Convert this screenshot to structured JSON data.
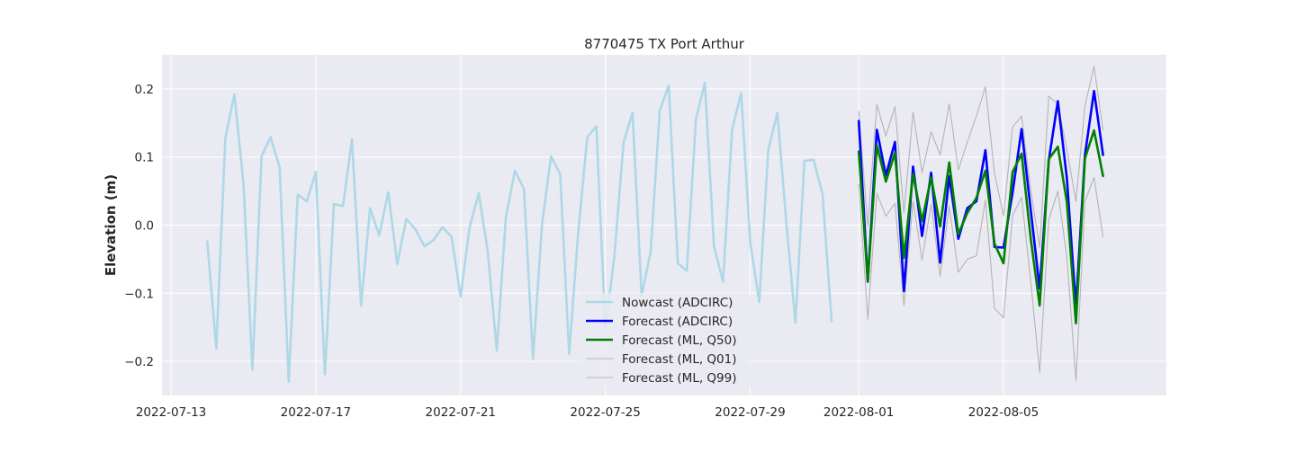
{
  "chart_data": {
    "type": "line",
    "title": "8770475 TX Port Arthur",
    "xlabel": "",
    "ylabel": "Elevation (m)",
    "x_ticks": [
      "2022-07-13",
      "2022-07-17",
      "2022-07-21",
      "2022-07-25",
      "2022-07-29",
      "2022-08-01",
      "2022-08-05"
    ],
    "y_ticks": [
      "−0.2",
      "−0.1",
      "0.0",
      "0.1",
      "0.2"
    ],
    "ylim": [
      -0.25,
      0.25
    ],
    "xlim": [
      "2022-07-12 18:00",
      "2022-08-09 12:00"
    ],
    "grid": true,
    "legend_position": "lower-center",
    "series": [
      {
        "name": "Nowcast (ADCIRC)",
        "color": "#add8e6",
        "x": [
          "2022-07-14 00:00",
          "2022-07-14 06:00",
          "2022-07-14 12:00",
          "2022-07-14 18:00",
          "2022-07-15 00:00",
          "2022-07-15 06:00",
          "2022-07-15 12:00",
          "2022-07-15 18:00",
          "2022-07-16 00:00",
          "2022-07-16 06:00",
          "2022-07-16 12:00",
          "2022-07-16 18:00",
          "2022-07-17 00:00",
          "2022-07-17 06:00",
          "2022-07-17 12:00",
          "2022-07-17 18:00",
          "2022-07-18 00:00",
          "2022-07-18 06:00",
          "2022-07-18 12:00",
          "2022-07-18 18:00",
          "2022-07-19 00:00",
          "2022-07-19 06:00",
          "2022-07-19 12:00",
          "2022-07-19 18:00",
          "2022-07-20 00:00",
          "2022-07-20 06:00",
          "2022-07-20 12:00",
          "2022-07-20 18:00",
          "2022-07-21 00:00",
          "2022-07-21 06:00",
          "2022-07-21 12:00",
          "2022-07-21 18:00",
          "2022-07-22 00:00",
          "2022-07-22 06:00",
          "2022-07-22 12:00",
          "2022-07-22 18:00",
          "2022-07-23 00:00",
          "2022-07-23 06:00",
          "2022-07-23 12:00",
          "2022-07-23 18:00",
          "2022-07-24 00:00",
          "2022-07-24 06:00",
          "2022-07-24 12:00",
          "2022-07-24 18:00",
          "2022-07-25 00:00",
          "2022-07-25 06:00",
          "2022-07-25 12:00",
          "2022-07-25 18:00",
          "2022-07-26 00:00",
          "2022-07-26 06:00",
          "2022-07-26 12:00",
          "2022-07-26 18:00",
          "2022-07-27 00:00",
          "2022-07-27 06:00",
          "2022-07-27 12:00",
          "2022-07-27 18:00",
          "2022-07-28 00:00",
          "2022-07-28 06:00",
          "2022-07-28 12:00",
          "2022-07-28 18:00",
          "2022-07-29 00:00",
          "2022-07-29 06:00",
          "2022-07-29 12:00",
          "2022-07-29 18:00",
          "2022-07-30 00:00",
          "2022-07-30 06:00",
          "2022-07-30 12:00",
          "2022-07-30 18:00",
          "2022-07-31 00:00",
          "2022-07-31 06:00"
        ],
        "y": [
          -0.024,
          -0.181,
          0.128,
          0.192,
          0.062,
          -0.212,
          0.101,
          0.129,
          0.085,
          -0.23,
          0.045,
          0.035,
          0.078,
          -0.219,
          0.031,
          0.028,
          0.126,
          -0.118,
          0.025,
          -0.015,
          0.048,
          -0.057,
          0.009,
          -0.006,
          -0.031,
          -0.022,
          -0.003,
          -0.017,
          -0.105,
          -0.003,
          0.047,
          -0.038,
          -0.184,
          0.012,
          0.08,
          0.053,
          -0.196,
          0.002,
          0.101,
          0.075,
          -0.189,
          -0.01,
          0.129,
          0.145,
          -0.152,
          -0.045,
          0.121,
          0.165,
          -0.103,
          -0.04,
          0.168,
          0.205,
          -0.056,
          -0.067,
          0.155,
          0.209,
          -0.031,
          -0.083,
          0.14,
          0.194,
          -0.024,
          -0.113,
          0.11,
          0.165,
          0.004,
          -0.143,
          0.094,
          0.096,
          0.046,
          -0.141
        ]
      },
      {
        "name": "Forecast (ADCIRC)",
        "color": "#0000ff",
        "x": [
          "2022-08-01 00:00",
          "2022-08-01 06:00",
          "2022-08-01 12:00",
          "2022-08-01 18:00",
          "2022-08-02 00:00",
          "2022-08-02 06:00",
          "2022-08-02 12:00",
          "2022-08-02 18:00",
          "2022-08-03 00:00",
          "2022-08-03 06:00",
          "2022-08-03 12:00",
          "2022-08-03 18:00",
          "2022-08-04 00:00",
          "2022-08-04 06:00",
          "2022-08-04 12:00",
          "2022-08-04 18:00",
          "2022-08-05 00:00",
          "2022-08-05 06:00",
          "2022-08-05 12:00",
          "2022-08-05 18:00",
          "2022-08-06 00:00",
          "2022-08-06 06:00",
          "2022-08-06 12:00",
          "2022-08-06 18:00",
          "2022-08-07 00:00",
          "2022-08-07 06:00",
          "2022-08-07 12:00",
          "2022-08-07 18:00"
        ],
        "y": [
          0.153,
          -0.083,
          0.14,
          0.073,
          0.122,
          -0.097,
          0.086,
          -0.016,
          0.077,
          -0.055,
          0.072,
          -0.02,
          0.025,
          0.035,
          0.11,
          -0.032,
          -0.033,
          0.048,
          0.141,
          0.023,
          -0.093,
          0.095,
          0.182,
          0.069,
          -0.12,
          0.103,
          0.197,
          0.103
        ]
      },
      {
        "name": "Forecast (ML, Q50)",
        "color": "#008000",
        "x": [
          "2022-08-01 00:00",
          "2022-08-01 06:00",
          "2022-08-01 12:00",
          "2022-08-01 18:00",
          "2022-08-02 00:00",
          "2022-08-02 06:00",
          "2022-08-02 12:00",
          "2022-08-02 18:00",
          "2022-08-03 00:00",
          "2022-08-03 06:00",
          "2022-08-03 12:00",
          "2022-08-03 18:00",
          "2022-08-04 00:00",
          "2022-08-04 06:00",
          "2022-08-04 12:00",
          "2022-08-04 18:00",
          "2022-08-05 00:00",
          "2022-08-05 06:00",
          "2022-08-05 12:00",
          "2022-08-05 18:00",
          "2022-08-06 00:00",
          "2022-08-06 06:00",
          "2022-08-06 12:00",
          "2022-08-06 18:00",
          "2022-08-07 00:00",
          "2022-08-07 06:00",
          "2022-08-07 12:00",
          "2022-08-07 18:00"
        ],
        "y": [
          0.108,
          -0.082,
          0.117,
          0.064,
          0.106,
          -0.048,
          0.075,
          0.006,
          0.07,
          -0.002,
          0.092,
          -0.013,
          0.018,
          0.04,
          0.08,
          -0.027,
          -0.056,
          0.078,
          0.105,
          -0.019,
          -0.118,
          0.097,
          0.115,
          0.034,
          -0.144,
          0.098,
          0.139,
          0.072
        ]
      },
      {
        "name": "Forecast (ML, Q01)",
        "color": "#b4b4b4",
        "x": [
          "2022-08-01 00:00",
          "2022-08-01 06:00",
          "2022-08-01 12:00",
          "2022-08-01 18:00",
          "2022-08-02 00:00",
          "2022-08-02 06:00",
          "2022-08-02 12:00",
          "2022-08-02 18:00",
          "2022-08-03 00:00",
          "2022-08-03 06:00",
          "2022-08-03 12:00",
          "2022-08-03 18:00",
          "2022-08-04 00:00",
          "2022-08-04 06:00",
          "2022-08-04 12:00",
          "2022-08-04 18:00",
          "2022-08-05 00:00",
          "2022-08-05 06:00",
          "2022-08-05 12:00",
          "2022-08-05 18:00",
          "2022-08-06 00:00",
          "2022-08-06 06:00",
          "2022-08-06 12:00",
          "2022-08-06 18:00",
          "2022-08-07 00:00",
          "2022-08-07 06:00",
          "2022-08-07 12:00",
          "2022-08-07 18:00"
        ],
        "y": [
          0.06,
          -0.138,
          0.047,
          0.013,
          0.032,
          -0.118,
          0.035,
          -0.051,
          0.031,
          -0.075,
          0.028,
          -0.069,
          -0.05,
          -0.045,
          0.037,
          -0.122,
          -0.136,
          0.014,
          0.041,
          -0.082,
          -0.216,
          0.008,
          0.05,
          -0.047,
          -0.228,
          0.035,
          0.07,
          -0.017
        ]
      },
      {
        "name": "Forecast (ML, Q99)",
        "color": "#b4b4b4",
        "x": [
          "2022-08-01 00:00",
          "2022-08-01 06:00",
          "2022-08-01 12:00",
          "2022-08-01 18:00",
          "2022-08-02 00:00",
          "2022-08-02 06:00",
          "2022-08-02 12:00",
          "2022-08-02 18:00",
          "2022-08-03 00:00",
          "2022-08-03 06:00",
          "2022-08-03 12:00",
          "2022-08-03 18:00",
          "2022-08-04 00:00",
          "2022-08-04 06:00",
          "2022-08-04 12:00",
          "2022-08-04 18:00",
          "2022-08-05 00:00",
          "2022-08-05 06:00",
          "2022-08-05 12:00",
          "2022-08-05 18:00",
          "2022-08-06 00:00",
          "2022-08-06 06:00",
          "2022-08-06 12:00",
          "2022-08-06 18:00",
          "2022-08-07 00:00",
          "2022-08-07 06:00",
          "2022-08-07 12:00",
          "2022-08-07 18:00"
        ],
        "y": [
          0.167,
          -0.001,
          0.177,
          0.131,
          0.174,
          0.018,
          0.166,
          0.077,
          0.137,
          0.103,
          0.178,
          0.081,
          0.122,
          0.16,
          0.203,
          0.076,
          0.014,
          0.144,
          0.16,
          0.052,
          -0.033,
          0.189,
          0.178,
          0.111,
          0.035,
          0.175,
          0.233,
          0.14
        ]
      }
    ]
  }
}
